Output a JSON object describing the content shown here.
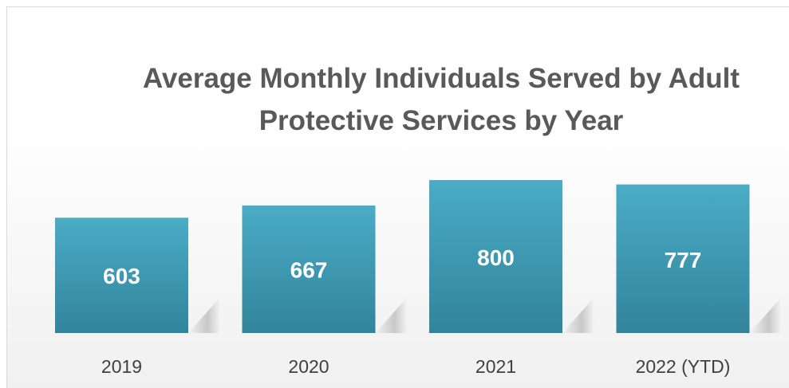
{
  "chart_data": {
    "type": "bar",
    "title": "Average Monthly Individuals Served by Adult Protective Services by Year",
    "categories": [
      "2019",
      "2020",
      "2021",
      "2022 (YTD)"
    ],
    "values": [
      603,
      667,
      800,
      777
    ],
    "color": "#4bacc6"
  }
}
